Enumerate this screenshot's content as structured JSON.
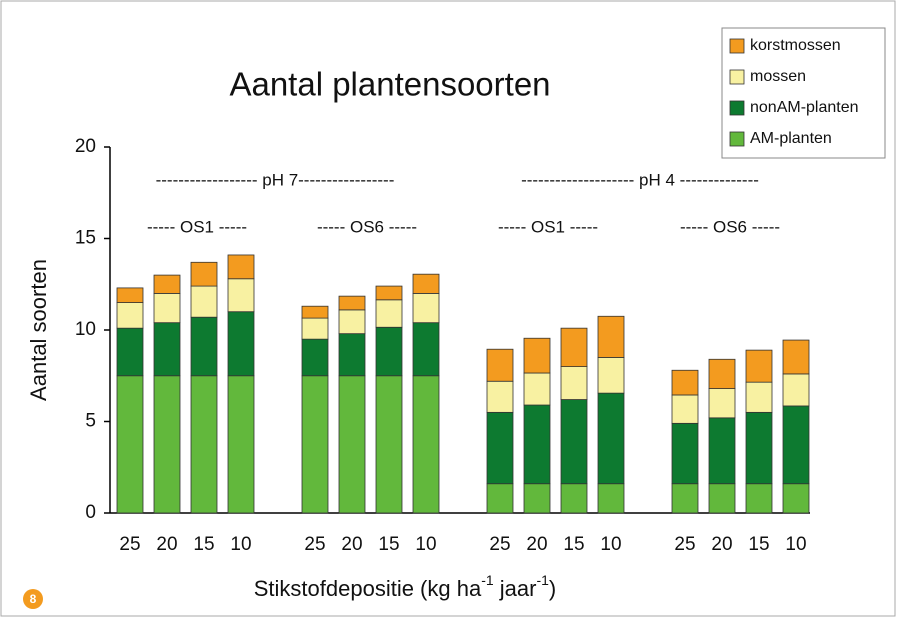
{
  "chart_data": {
    "type": "stacked-bar",
    "title": "Aantal plantensoorten",
    "ylabel": "Aantal soorten",
    "xlabel": [
      "Stikstofdepositie (kg ha",
      "-1",
      " jaar",
      "-1",
      ")"
    ],
    "badge": "8",
    "annotations": [
      "------------------ pH 7-----------------",
      "-------------------- pH 4 --------------",
      "----- OS1 -----",
      "----- OS6 -----",
      "----- OS1 -----",
      "----- OS6 -----"
    ],
    "categories": [
      "25",
      "20",
      "15",
      "10",
      null,
      "25",
      "20",
      "15",
      "10",
      null,
      "25",
      "20",
      "15",
      "10",
      null,
      "25",
      "20",
      "15",
      "10"
    ],
    "series": [
      {
        "name": "AM-planten",
        "color": "#62b83c",
        "values": [
          7.5,
          7.5,
          7.5,
          7.5,
          null,
          7.5,
          7.5,
          7.5,
          7.5,
          null,
          1.6,
          1.6,
          1.6,
          1.6,
          null,
          1.6,
          1.6,
          1.6,
          1.6
        ]
      },
      {
        "name": "nonAM-planten",
        "color": "#0d7a30",
        "values": [
          2.6,
          2.9,
          3.2,
          3.5,
          null,
          2.0,
          2.3,
          2.65,
          2.9,
          null,
          3.9,
          4.3,
          4.6,
          4.95,
          null,
          3.3,
          3.6,
          3.9,
          4.25
        ]
      },
      {
        "name": "mossen",
        "color": "#f8f1a2",
        "values": [
          1.4,
          1.6,
          1.7,
          1.8,
          null,
          1.15,
          1.3,
          1.5,
          1.6,
          null,
          1.7,
          1.75,
          1.8,
          1.95,
          null,
          1.55,
          1.6,
          1.65,
          1.75
        ]
      },
      {
        "name": "korstmossen",
        "color": "#f39b1f",
        "values": [
          0.8,
          1.0,
          1.3,
          1.3,
          null,
          0.65,
          0.75,
          0.75,
          1.05,
          null,
          1.75,
          1.9,
          2.1,
          2.25,
          null,
          1.35,
          1.6,
          1.75,
          1.85
        ]
      }
    ],
    "ylim": [
      0,
      20
    ],
    "yticks": [
      0,
      5,
      10,
      15,
      20
    ],
    "legend": "upper-right"
  }
}
